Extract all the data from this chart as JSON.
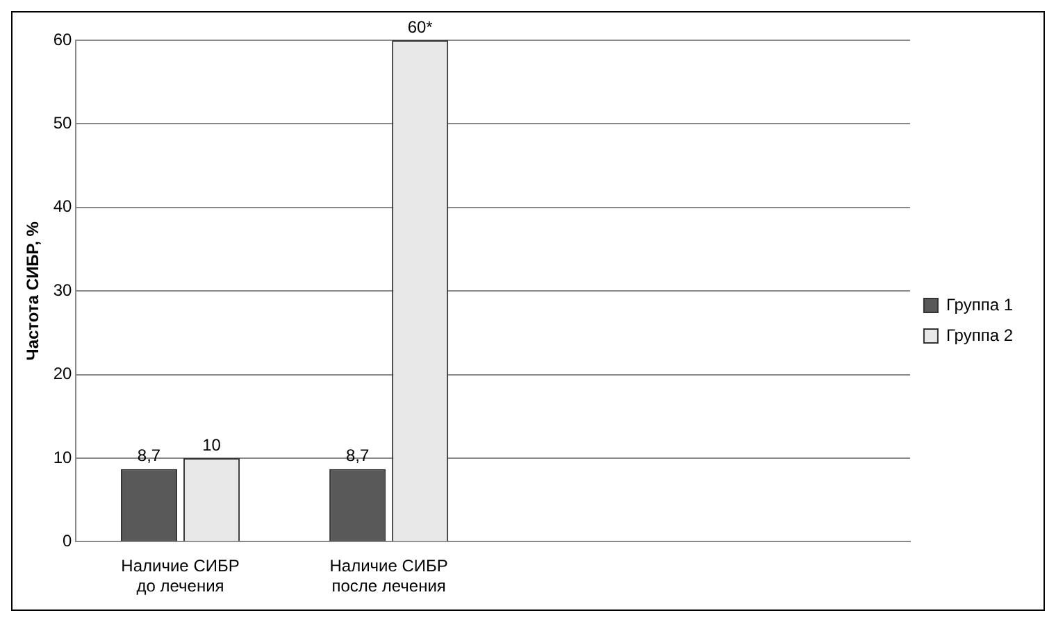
{
  "chart_data": {
    "type": "bar",
    "ylabel": "Частота СИБР, %",
    "categories": [
      "Наличие СИБР до лечения",
      "Наличие СИБР после лечения",
      null,
      null
    ],
    "series": [
      {
        "name": "Группа 1",
        "color": "#595959",
        "values": [
          8.7,
          8.7,
          null,
          null
        ],
        "value_labels": [
          "8,7",
          "8,7",
          null,
          null
        ]
      },
      {
        "name": "Группа 2",
        "color": "#e8e8e8",
        "values": [
          10,
          60,
          null,
          null
        ],
        "value_labels": [
          "10",
          "60*",
          null,
          null
        ]
      }
    ],
    "ylim": [
      0,
      60
    ],
    "yticks": [
      0,
      10,
      20,
      30,
      40,
      50,
      60
    ],
    "grid": "y",
    "legend": "right"
  }
}
